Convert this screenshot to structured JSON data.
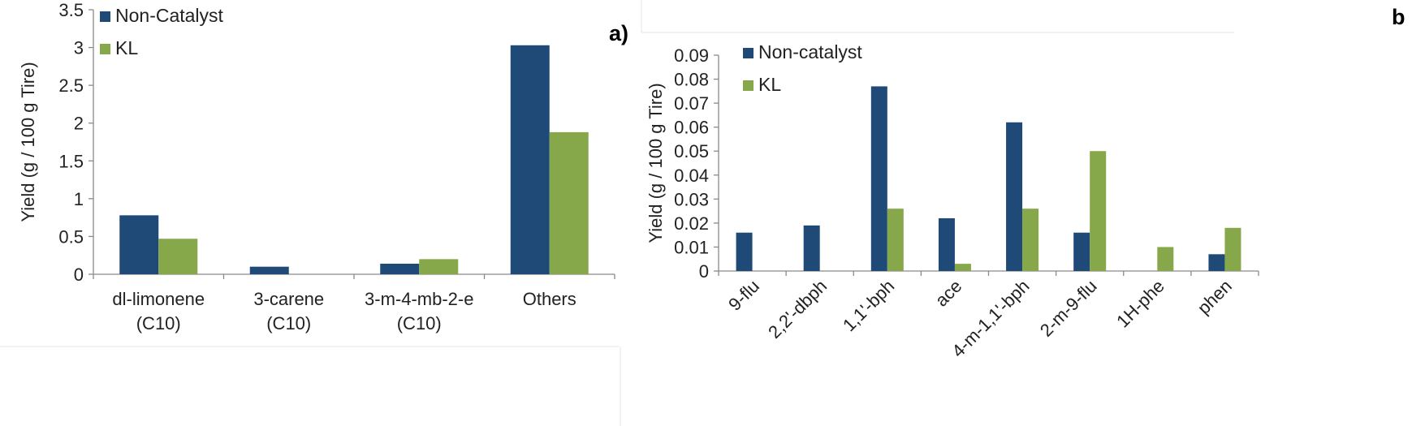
{
  "panel_labels": [
    "a)",
    "b"
  ],
  "colors": {
    "non_catalyst": "#1f4a78",
    "kl": "#86a84a"
  },
  "chart_data": [
    {
      "type": "bar",
      "categories": [
        [
          "dl-limonene",
          "(C10)"
        ],
        [
          "3-carene",
          "(C10)"
        ],
        [
          "3-m-4-mb-2-e",
          "(C10)"
        ],
        [
          "Others"
        ]
      ],
      "series": [
        {
          "name": "Non-Catalyst",
          "values": [
            0.78,
            0.1,
            0.14,
            3.03
          ]
        },
        {
          "name": "KL",
          "values": [
            0.47,
            0,
            0.2,
            1.88
          ]
        }
      ],
      "ylabel": "Yield (g / 100 g Tire)",
      "ylim": [
        0,
        3.5
      ],
      "yticks": [
        "0",
        "0.5",
        "1",
        "1.5",
        "2",
        "2.5",
        "3",
        "3.5"
      ],
      "legend": "top-left",
      "grid": false
    },
    {
      "type": "bar",
      "categories": [
        "9-flu",
        "2,2'-dbph",
        "1,1'-bph",
        "ace",
        "4-m-1,1'-bph",
        "2-m-9-flu",
        "1H-phe",
        "phen"
      ],
      "series": [
        {
          "name": "Non-catalyst",
          "values": [
            0.016,
            0.019,
            0.077,
            0.022,
            0.062,
            0.016,
            0,
            0.007
          ]
        },
        {
          "name": "KL",
          "values": [
            0,
            0,
            0.026,
            0.003,
            0.026,
            0.05,
            0.01,
            0.018
          ]
        }
      ],
      "ylabel": "Yield (g / 100 g Tire)",
      "ylim": [
        0,
        0.09
      ],
      "yticks": [
        "0",
        "0.01",
        "0.02",
        "0.03",
        "0.04",
        "0.05",
        "0.06",
        "0.07",
        "0.08",
        "0.09"
      ],
      "legend": "top-left",
      "grid": false
    }
  ]
}
